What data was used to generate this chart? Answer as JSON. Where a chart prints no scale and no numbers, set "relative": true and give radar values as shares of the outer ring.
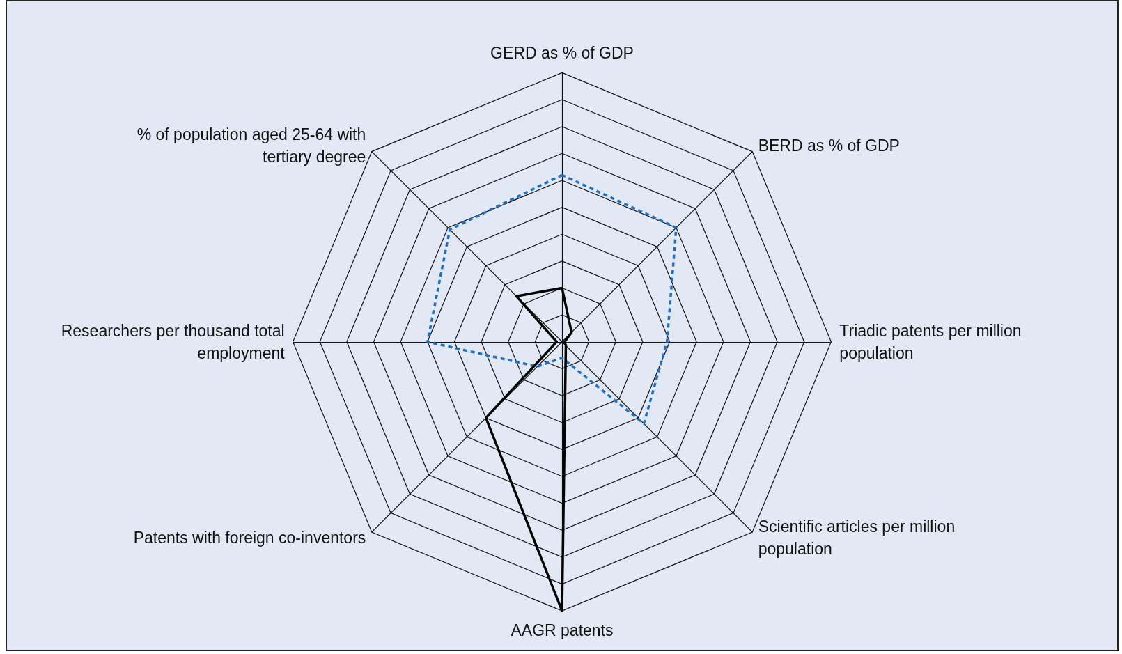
{
  "chart_data": {
    "type": "radar",
    "relative": true,
    "categories": [
      "GERD as % of GDP",
      "BERD as % of GDP",
      "Triadic patents per million population",
      "Scientific articles per million population",
      "AAGR patents",
      "Patents with foreign co-inventors",
      "Researchers per thousand total employment",
      "% of population aged 25-64 with tertiary degree"
    ],
    "series": [
      {
        "color": "#1f6fc0",
        "line_style": "dashed",
        "values": [
          0.62,
          0.6,
          0.39,
          0.43,
          0.06,
          0.13,
          0.5,
          0.59
        ]
      },
      {
        "color": "#000000",
        "line_style": "solid",
        "values": [
          0.2,
          0.05,
          0.01,
          0.02,
          1,
          0.4,
          0.02,
          0.24
        ]
      }
    ],
    "marker": "none"
  }
}
